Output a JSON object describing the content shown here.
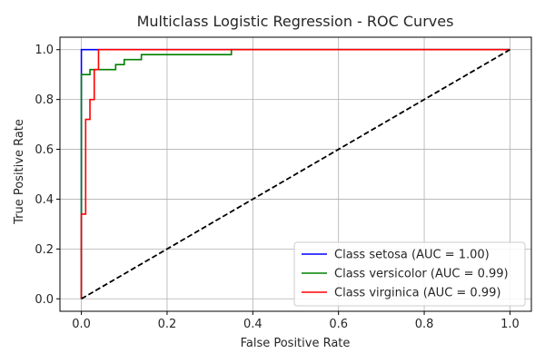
{
  "chart_data": {
    "type": "line",
    "title": "Multiclass Logistic Regression - ROC Curves",
    "xlabel": "False Positive Rate",
    "ylabel": "True Positive Rate",
    "xlim": [
      -0.05,
      1.05
    ],
    "ylim": [
      -0.05,
      1.05
    ],
    "xticks": [
      0.0,
      0.2,
      0.4,
      0.6,
      0.8,
      1.0
    ],
    "yticks": [
      0.0,
      0.2,
      0.4,
      0.6,
      0.8,
      1.0
    ],
    "xtick_labels": [
      "0.0",
      "0.2",
      "0.4",
      "0.6",
      "0.8",
      "1.0"
    ],
    "ytick_labels": [
      "0.0",
      "0.2",
      "0.4",
      "0.6",
      "0.8",
      "1.0"
    ],
    "grid": true,
    "legend_position": "lower-right",
    "series": [
      {
        "name": "Class setosa (AUC = 1.00)",
        "color": "#0000ff",
        "x": [
          0.0,
          0.0,
          0.04,
          1.0
        ],
        "y": [
          0.0,
          1.0,
          1.0,
          1.0
        ]
      },
      {
        "name": "Class versicolor (AUC = 0.99)",
        "color": "#008000",
        "x": [
          0.0,
          0.0,
          0.02,
          0.02,
          0.08,
          0.08,
          0.1,
          0.1,
          0.14,
          0.14,
          0.35,
          0.35,
          1.0
        ],
        "y": [
          0.0,
          0.9,
          0.9,
          0.92,
          0.92,
          0.94,
          0.94,
          0.96,
          0.96,
          0.98,
          0.98,
          1.0,
          1.0
        ]
      },
      {
        "name": "Class virginica (AUC = 0.99)",
        "color": "#ff0000",
        "x": [
          0.0,
          0.0,
          0.01,
          0.01,
          0.02,
          0.02,
          0.03,
          0.03,
          0.04,
          0.04,
          1.0
        ],
        "y": [
          0.0,
          0.34,
          0.34,
          0.72,
          0.72,
          0.8,
          0.8,
          0.92,
          0.92,
          1.0,
          1.0
        ]
      }
    ],
    "reference_line": {
      "color": "#000000",
      "dashed": true,
      "x": [
        0.0,
        1.0
      ],
      "y": [
        0.0,
        1.0
      ]
    }
  }
}
